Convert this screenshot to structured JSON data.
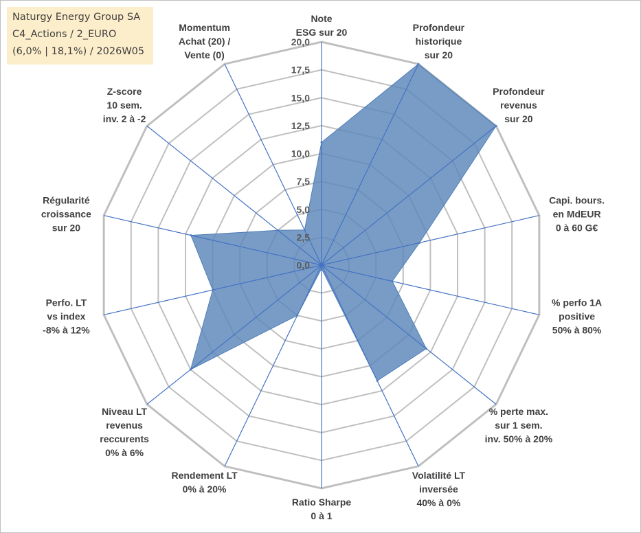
{
  "title_box": {
    "line1": "Naturgy Energy Group SA",
    "line2": "C4_Actions / 2_EURO",
    "line3": "(6,0% | 18,1%) / 2026W05",
    "background": "#fdeecb"
  },
  "chart_data": {
    "type": "radar",
    "title": "",
    "r_range": [
      0,
      20
    ],
    "r_ticks": [
      "0,0",
      "2,5",
      "5,0",
      "7,5",
      "10,0",
      "12,5",
      "15,0",
      "17,5",
      "20,0"
    ],
    "axes": [
      {
        "label": [
          "Note",
          "ESG sur 20"
        ],
        "value": 11.0
      },
      {
        "label": [
          "Profondeur",
          "historique",
          "sur 20"
        ],
        "value": 20.0
      },
      {
        "label": [
          "Profondeur",
          "revenus",
          "sur 20"
        ],
        "value": 20.0
      },
      {
        "label": [
          "Capi. bours.",
          "en MdEUR",
          "0 à 60 G€"
        ],
        "value": 9.0
      },
      {
        "label": [
          "% perfo 1A",
          "positive",
          "50% à 80%"
        ],
        "value": 6.5
      },
      {
        "label": [
          "% perte max.",
          "sur 1 sem.",
          "inv. 50% à 20%"
        ],
        "value": 12.0
      },
      {
        "label": [
          "Volatilité LT",
          "inversée",
          "40% à 0%"
        ],
        "value": 11.5
      },
      {
        "label": [
          "Ratio Sharpe",
          "0 à 1"
        ],
        "value": 0.3
      },
      {
        "label": [
          "Rendement LT",
          "0% à 20%"
        ],
        "value": 5.0
      },
      {
        "label": [
          "Niveau LT",
          "revenus",
          "reccurents",
          "0% à 6%"
        ],
        "value": 15.0
      },
      {
        "label": [
          "Perfo. LT",
          "vs index",
          "-8% à 12%"
        ],
        "value": 10.0
      },
      {
        "label": [
          "Régularité",
          "croissance",
          "sur 20"
        ],
        "value": 12.0
      },
      {
        "label": [
          "Z-score",
          "10 sem.",
          "inv. 2 à -2"
        ],
        "value": 5.0
      },
      {
        "label": [
          "Momentum",
          "Achat (20) /",
          "Vente (0)"
        ],
        "value": 3.5
      }
    ],
    "series": [
      {
        "name": "Naturgy Energy Group SA",
        "color": "#4f7fb8",
        "fill": "#5b86b9"
      }
    ],
    "colors": {
      "grid": "#bfbfbf",
      "spoke": "#4472c4",
      "series_fill": "#5b86b9",
      "series_line": "#4f7fb8"
    }
  }
}
